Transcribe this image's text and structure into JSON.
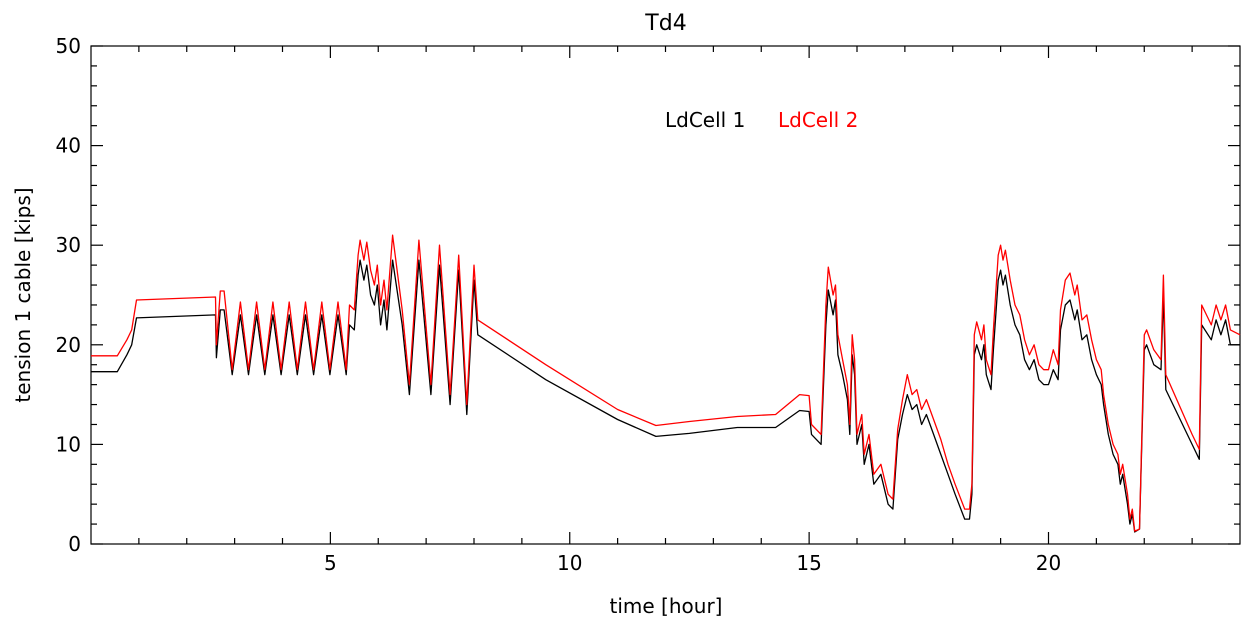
{
  "chart_data": {
    "type": "line",
    "title": "Td4",
    "xlabel": "time [hour]",
    "ylabel": "tension 1 cable [kips]",
    "xlim": [
      0,
      24
    ],
    "ylim": [
      0,
      50
    ],
    "xticks": [
      5,
      10,
      15,
      20
    ],
    "yticks": [
      0,
      10,
      20,
      30,
      40,
      50
    ],
    "grid": false,
    "legend_position": "top-center",
    "series": [
      {
        "name": "LdCell 1",
        "color": "#000000",
        "points": [
          [
            0.0,
            17.3
          ],
          [
            0.55,
            17.3
          ],
          [
            0.75,
            19.0
          ],
          [
            0.85,
            20.0
          ],
          [
            0.95,
            22.7
          ],
          [
            2.6,
            23.0
          ],
          [
            2.62,
            18.7
          ],
          [
            2.7,
            23.5
          ],
          [
            2.78,
            23.5
          ],
          [
            2.95,
            17.0
          ],
          [
            3.12,
            23.0
          ],
          [
            3.29,
            17.0
          ],
          [
            3.46,
            23.0
          ],
          [
            3.63,
            17.0
          ],
          [
            3.8,
            23.0
          ],
          [
            3.97,
            17.0
          ],
          [
            4.14,
            23.0
          ],
          [
            4.31,
            17.0
          ],
          [
            4.48,
            23.0
          ],
          [
            4.65,
            17.0
          ],
          [
            4.82,
            23.0
          ],
          [
            4.99,
            17.0
          ],
          [
            5.16,
            23.0
          ],
          [
            5.33,
            17.0
          ],
          [
            5.4,
            22.0
          ],
          [
            5.5,
            21.5
          ],
          [
            5.58,
            27.0
          ],
          [
            5.62,
            28.5
          ],
          [
            5.7,
            26.5
          ],
          [
            5.76,
            28.0
          ],
          [
            5.84,
            25.0
          ],
          [
            5.92,
            24.0
          ],
          [
            5.98,
            26.0
          ],
          [
            6.05,
            22.0
          ],
          [
            6.12,
            24.5
          ],
          [
            6.18,
            21.5
          ],
          [
            6.3,
            28.5
          ],
          [
            6.5,
            22.0
          ],
          [
            6.65,
            15.0
          ],
          [
            6.85,
            28.5
          ],
          [
            7.1,
            15.0
          ],
          [
            7.28,
            28.0
          ],
          [
            7.5,
            14.0
          ],
          [
            7.68,
            27.5
          ],
          [
            7.85,
            13.0
          ],
          [
            8.0,
            26.5
          ],
          [
            8.08,
            21.0
          ],
          [
            9.5,
            16.5
          ],
          [
            11.0,
            12.5
          ],
          [
            11.8,
            10.8
          ],
          [
            12.5,
            11.1
          ],
          [
            13.5,
            11.7
          ],
          [
            14.3,
            11.7
          ],
          [
            14.8,
            13.4
          ],
          [
            15.0,
            13.3
          ],
          [
            15.05,
            11.0
          ],
          [
            15.25,
            10.0
          ],
          [
            15.35,
            22.0
          ],
          [
            15.4,
            25.5
          ],
          [
            15.5,
            23.0
          ],
          [
            15.55,
            24.5
          ],
          [
            15.6,
            19.0
          ],
          [
            15.7,
            17.0
          ],
          [
            15.8,
            14.5
          ],
          [
            15.85,
            11.0
          ],
          [
            15.9,
            19.0
          ],
          [
            15.95,
            17.0
          ],
          [
            16.0,
            10.0
          ],
          [
            16.1,
            12.0
          ],
          [
            16.15,
            8.0
          ],
          [
            16.25,
            10.0
          ],
          [
            16.35,
            6.0
          ],
          [
            16.5,
            7.0
          ],
          [
            16.65,
            4.0
          ],
          [
            16.75,
            3.5
          ],
          [
            16.85,
            10.5
          ],
          [
            16.95,
            13.0
          ],
          [
            17.05,
            15.0
          ],
          [
            17.15,
            13.5
          ],
          [
            17.25,
            14.0
          ],
          [
            17.35,
            12.0
          ],
          [
            17.45,
            13.0
          ],
          [
            17.6,
            11.0
          ],
          [
            17.75,
            9.0
          ],
          [
            17.9,
            7.0
          ],
          [
            18.05,
            5.0
          ],
          [
            18.25,
            2.5
          ],
          [
            18.35,
            2.5
          ],
          [
            18.4,
            5.0
          ],
          [
            18.45,
            19.0
          ],
          [
            18.5,
            20.0
          ],
          [
            18.6,
            18.5
          ],
          [
            18.65,
            20.0
          ],
          [
            18.7,
            17.0
          ],
          [
            18.8,
            15.5
          ],
          [
            18.85,
            19.5
          ],
          [
            18.95,
            26.5
          ],
          [
            19.0,
            27.5
          ],
          [
            19.05,
            26.0
          ],
          [
            19.1,
            27.0
          ],
          [
            19.2,
            24.0
          ],
          [
            19.3,
            22.0
          ],
          [
            19.4,
            21.0
          ],
          [
            19.5,
            18.5
          ],
          [
            19.6,
            17.5
          ],
          [
            19.7,
            18.5
          ],
          [
            19.8,
            16.5
          ],
          [
            19.9,
            16.0
          ],
          [
            20.0,
            16.0
          ],
          [
            20.1,
            17.5
          ],
          [
            20.2,
            16.5
          ],
          [
            20.25,
            21.5
          ],
          [
            20.35,
            24.0
          ],
          [
            20.45,
            24.5
          ],
          [
            20.55,
            22.5
          ],
          [
            20.6,
            23.5
          ],
          [
            20.7,
            20.5
          ],
          [
            20.8,
            21.0
          ],
          [
            20.9,
            18.5
          ],
          [
            21.0,
            17.0
          ],
          [
            21.1,
            16.0
          ],
          [
            21.15,
            14.0
          ],
          [
            21.25,
            11.0
          ],
          [
            21.35,
            9.0
          ],
          [
            21.45,
            8.0
          ],
          [
            21.5,
            6.0
          ],
          [
            21.55,
            7.0
          ],
          [
            21.65,
            4.0
          ],
          [
            21.7,
            2.0
          ],
          [
            21.75,
            3.0
          ],
          [
            21.8,
            1.2
          ],
          [
            21.9,
            1.5
          ],
          [
            22.0,
            19.5
          ],
          [
            22.05,
            20.0
          ],
          [
            22.2,
            18.0
          ],
          [
            22.35,
            17.5
          ],
          [
            22.4,
            25.0
          ],
          [
            22.45,
            15.5
          ],
          [
            23.0,
            10.0
          ],
          [
            23.15,
            8.5
          ],
          [
            23.2,
            22.0
          ],
          [
            23.4,
            20.5
          ],
          [
            23.5,
            22.5
          ],
          [
            23.6,
            21.0
          ],
          [
            23.7,
            22.5
          ],
          [
            23.8,
            20.0
          ],
          [
            24.0,
            20.0
          ]
        ]
      },
      {
        "name": "LdCell 2",
        "color": "#ff0000",
        "points": [
          [
            0.0,
            18.9
          ],
          [
            0.55,
            18.9
          ],
          [
            0.75,
            20.5
          ],
          [
            0.85,
            21.5
          ],
          [
            0.95,
            24.5
          ],
          [
            2.6,
            24.8
          ],
          [
            2.62,
            20.0
          ],
          [
            2.7,
            25.4
          ],
          [
            2.78,
            25.4
          ],
          [
            2.95,
            17.5
          ],
          [
            3.12,
            24.3
          ],
          [
            3.29,
            17.5
          ],
          [
            3.46,
            24.3
          ],
          [
            3.63,
            17.5
          ],
          [
            3.8,
            24.3
          ],
          [
            3.97,
            17.5
          ],
          [
            4.14,
            24.3
          ],
          [
            4.31,
            17.5
          ],
          [
            4.48,
            24.3
          ],
          [
            4.65,
            17.5
          ],
          [
            4.82,
            24.3
          ],
          [
            4.99,
            17.5
          ],
          [
            5.16,
            24.3
          ],
          [
            5.33,
            17.5
          ],
          [
            5.4,
            24.0
          ],
          [
            5.5,
            23.5
          ],
          [
            5.58,
            29.0
          ],
          [
            5.62,
            30.5
          ],
          [
            5.7,
            28.5
          ],
          [
            5.76,
            30.3
          ],
          [
            5.84,
            27.5
          ],
          [
            5.92,
            26.0
          ],
          [
            5.98,
            28.0
          ],
          [
            6.05,
            24.0
          ],
          [
            6.12,
            26.5
          ],
          [
            6.18,
            23.5
          ],
          [
            6.3,
            31.0
          ],
          [
            6.5,
            23.5
          ],
          [
            6.65,
            16.0
          ],
          [
            6.85,
            30.5
          ],
          [
            7.1,
            16.0
          ],
          [
            7.28,
            30.0
          ],
          [
            7.5,
            15.0
          ],
          [
            7.68,
            29.0
          ],
          [
            7.85,
            14.0
          ],
          [
            8.0,
            28.0
          ],
          [
            8.08,
            22.5
          ],
          [
            9.5,
            18.0
          ],
          [
            11.0,
            13.5
          ],
          [
            11.8,
            11.9
          ],
          [
            12.5,
            12.3
          ],
          [
            13.5,
            12.8
          ],
          [
            14.3,
            13.0
          ],
          [
            14.8,
            15.0
          ],
          [
            15.0,
            14.9
          ],
          [
            15.05,
            12.0
          ],
          [
            15.25,
            11.0
          ],
          [
            15.35,
            24.0
          ],
          [
            15.4,
            27.8
          ],
          [
            15.5,
            25.0
          ],
          [
            15.55,
            26.0
          ],
          [
            15.6,
            21.0
          ],
          [
            15.7,
            18.5
          ],
          [
            15.8,
            16.0
          ],
          [
            15.85,
            12.0
          ],
          [
            15.9,
            21.0
          ],
          [
            15.95,
            18.5
          ],
          [
            16.0,
            11.0
          ],
          [
            16.1,
            13.0
          ],
          [
            16.15,
            9.0
          ],
          [
            16.25,
            11.0
          ],
          [
            16.35,
            7.0
          ],
          [
            16.5,
            8.0
          ],
          [
            16.65,
            5.0
          ],
          [
            16.75,
            4.5
          ],
          [
            16.85,
            11.5
          ],
          [
            16.95,
            14.5
          ],
          [
            17.05,
            17.0
          ],
          [
            17.15,
            15.0
          ],
          [
            17.25,
            15.5
          ],
          [
            17.35,
            13.5
          ],
          [
            17.45,
            14.5
          ],
          [
            17.6,
            12.5
          ],
          [
            17.75,
            10.5
          ],
          [
            17.9,
            8.0
          ],
          [
            18.05,
            6.0
          ],
          [
            18.25,
            3.5
          ],
          [
            18.35,
            3.5
          ],
          [
            18.4,
            6.0
          ],
          [
            18.45,
            21.0
          ],
          [
            18.5,
            22.3
          ],
          [
            18.6,
            20.5
          ],
          [
            18.65,
            22.0
          ],
          [
            18.7,
            18.5
          ],
          [
            18.8,
            17.0
          ],
          [
            18.85,
            21.5
          ],
          [
            18.95,
            29.0
          ],
          [
            19.0,
            30.0
          ],
          [
            19.05,
            28.5
          ],
          [
            19.1,
            29.5
          ],
          [
            19.2,
            26.5
          ],
          [
            19.3,
            24.0
          ],
          [
            19.4,
            23.0
          ],
          [
            19.5,
            20.5
          ],
          [
            19.6,
            19.0
          ],
          [
            19.7,
            20.0
          ],
          [
            19.8,
            18.0
          ],
          [
            19.9,
            17.5
          ],
          [
            20.0,
            17.5
          ],
          [
            20.1,
            19.5
          ],
          [
            20.2,
            18.0
          ],
          [
            20.25,
            23.5
          ],
          [
            20.35,
            26.5
          ],
          [
            20.45,
            27.2
          ],
          [
            20.55,
            25.0
          ],
          [
            20.6,
            26.0
          ],
          [
            20.7,
            22.5
          ],
          [
            20.8,
            23.0
          ],
          [
            20.9,
            20.5
          ],
          [
            21.0,
            18.5
          ],
          [
            21.1,
            17.5
          ],
          [
            21.15,
            15.0
          ],
          [
            21.25,
            12.0
          ],
          [
            21.35,
            10.0
          ],
          [
            21.45,
            9.0
          ],
          [
            21.5,
            7.0
          ],
          [
            21.55,
            8.0
          ],
          [
            21.65,
            5.0
          ],
          [
            21.7,
            2.5
          ],
          [
            21.75,
            3.5
          ],
          [
            21.8,
            1.3
          ],
          [
            21.9,
            1.5
          ],
          [
            22.0,
            21.0
          ],
          [
            22.05,
            21.5
          ],
          [
            22.2,
            19.5
          ],
          [
            22.35,
            18.5
          ],
          [
            22.4,
            27.0
          ],
          [
            22.45,
            17.0
          ],
          [
            23.0,
            11.0
          ],
          [
            23.15,
            9.5
          ],
          [
            23.2,
            24.0
          ],
          [
            23.4,
            22.0
          ],
          [
            23.5,
            24.0
          ],
          [
            23.6,
            22.5
          ],
          [
            23.7,
            24.0
          ],
          [
            23.8,
            21.5
          ],
          [
            24.0,
            21.0
          ]
        ]
      }
    ]
  }
}
